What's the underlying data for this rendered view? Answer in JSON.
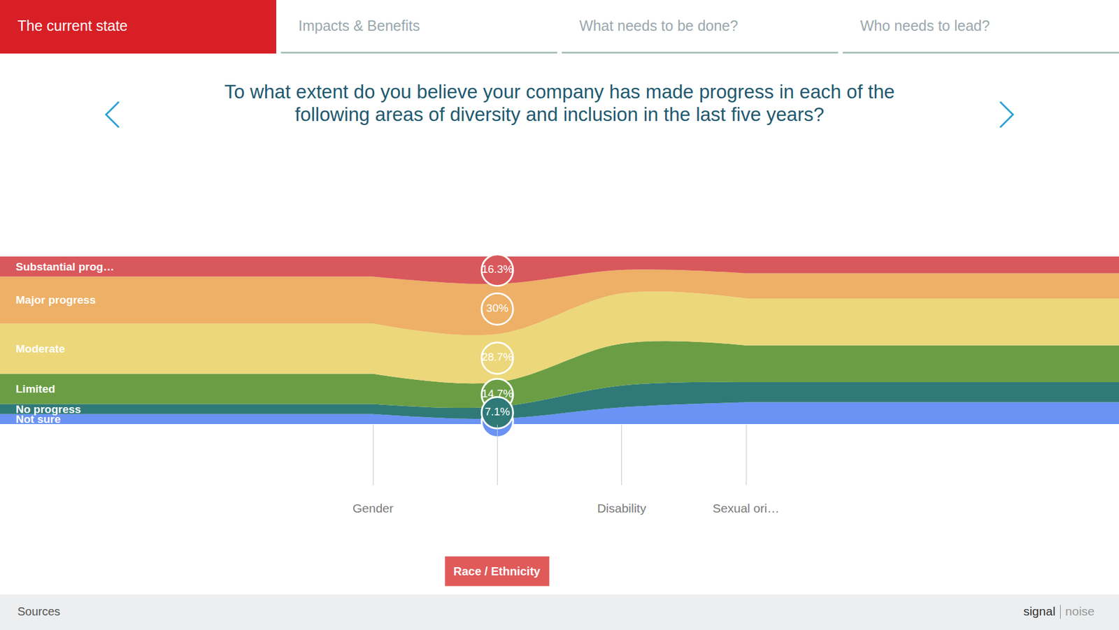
{
  "tabs": {
    "items": [
      "The current state",
      "Impacts & Benefits",
      "What needs to be done?",
      "Who needs to lead?"
    ],
    "active": "The current state"
  },
  "chart_data": {
    "type": "streamgraph",
    "title": "To what extent do you believe your company has made progress in each of the following areas of diversity and inclusion in the last five years?",
    "categories": [
      "Gender",
      "Race / Ethnicity",
      "Disability",
      "Sexual ori…"
    ],
    "series": [
      {
        "name": "Substantial prog…",
        "color": "#d9585b",
        "values": [
          12,
          16.3,
          8,
          10
        ],
        "value_labels": [
          null,
          "16.3%",
          null,
          null
        ]
      },
      {
        "name": "Major progress",
        "color": "#edb066",
        "values": [
          28,
          30,
          14,
          15
        ],
        "value_labels": [
          null,
          "30%",
          null,
          null
        ]
      },
      {
        "name": "Moderate",
        "color": "#ecd77a",
        "values": [
          30,
          28.7,
          30,
          28
        ],
        "value_labels": [
          null,
          "28.7%",
          null,
          null
        ]
      },
      {
        "name": "Limited",
        "color": "#6b9e44",
        "values": [
          18,
          14.7,
          25,
          22
        ],
        "value_labels": [
          null,
          "14.7%",
          null,
          null
        ]
      },
      {
        "name": "No progress",
        "color": "#2f7a78",
        "values": [
          6,
          7.1,
          13,
          12
        ],
        "value_labels": [
          null,
          "7.1%",
          null,
          null
        ]
      },
      {
        "name": "Not sure",
        "color": "#6a93f5",
        "values": [
          6,
          3.2,
          10,
          13
        ],
        "value_labels": [
          null,
          null,
          null,
          null
        ]
      }
    ],
    "stacked": true,
    "ylim": [
      0,
      100
    ],
    "tick_labels": "x",
    "data_labels": true
  },
  "footer": {
    "sources": "Sources",
    "brand": [
      "signal",
      "noise"
    ]
  }
}
